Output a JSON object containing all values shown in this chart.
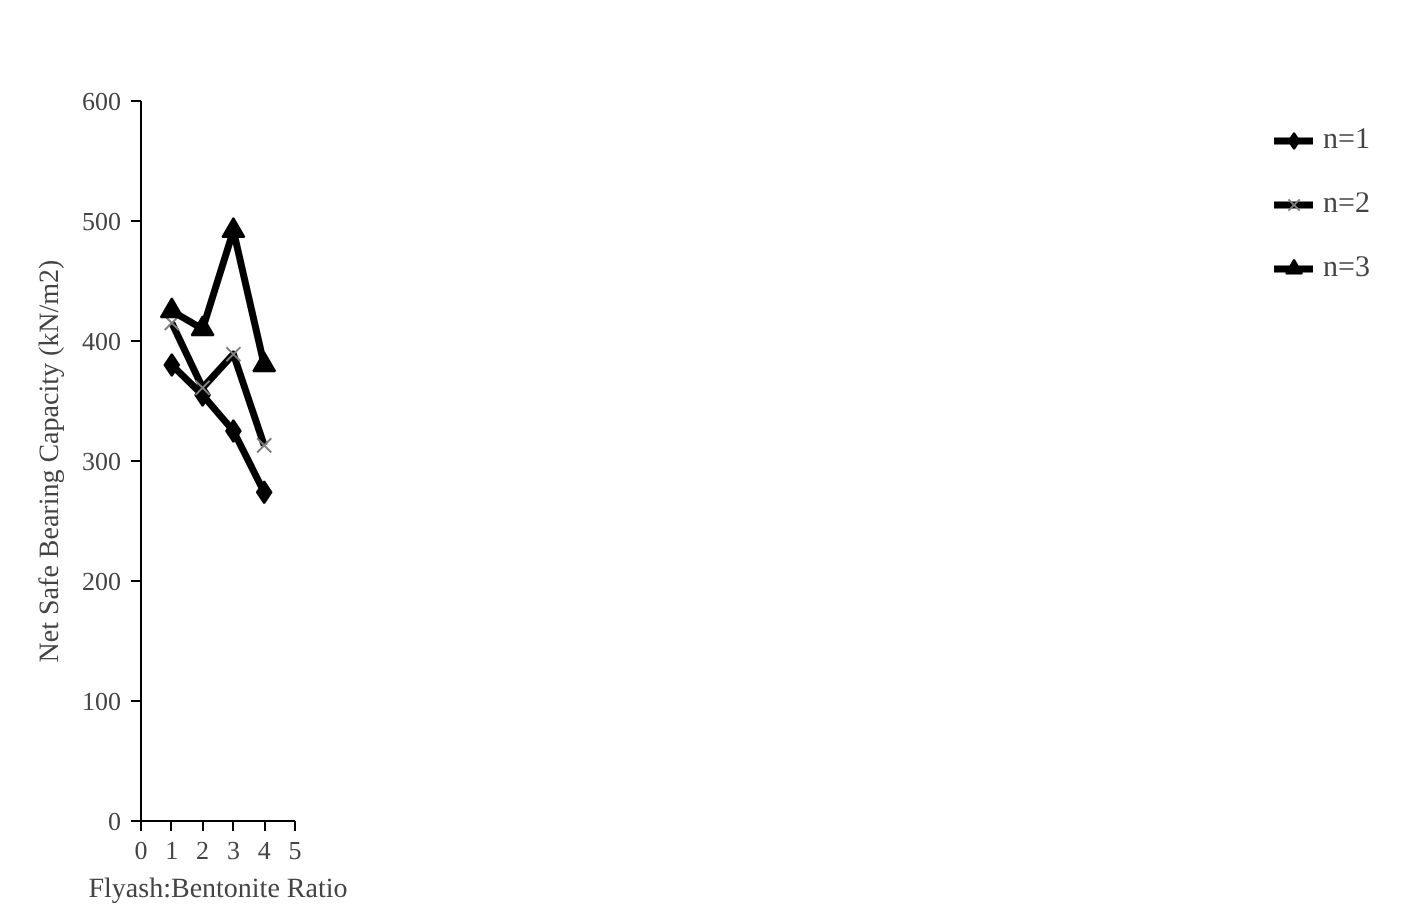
{
  "chart_data": {
    "type": "line",
    "xlabel": "Flyash:Bentonite Ratio",
    "ylabel": "Net Safe Bearing Capacity (kN/m2)",
    "x": [
      1,
      2,
      3,
      4
    ],
    "series": [
      {
        "name": "n=1",
        "color": "#000000",
        "marker": "diamond",
        "values": [
          380,
          355,
          325,
          274
        ]
      },
      {
        "name": "n=2",
        "color": "#000000",
        "marker": "cross",
        "values": [
          415,
          361,
          389,
          313
        ]
      },
      {
        "name": "n=3",
        "color": "#000000",
        "marker": "triangle",
        "values": [
          425,
          410,
          492,
          380
        ]
      }
    ],
    "xlim": [
      0,
      5
    ],
    "xticks": [
      0,
      1,
      2,
      3,
      4,
      5
    ],
    "ylim": [
      0,
      600
    ],
    "yticks": [
      0,
      100,
      200,
      300,
      400,
      500,
      600
    ],
    "grid": false,
    "legend": "right",
    "line_style": "solid"
  }
}
